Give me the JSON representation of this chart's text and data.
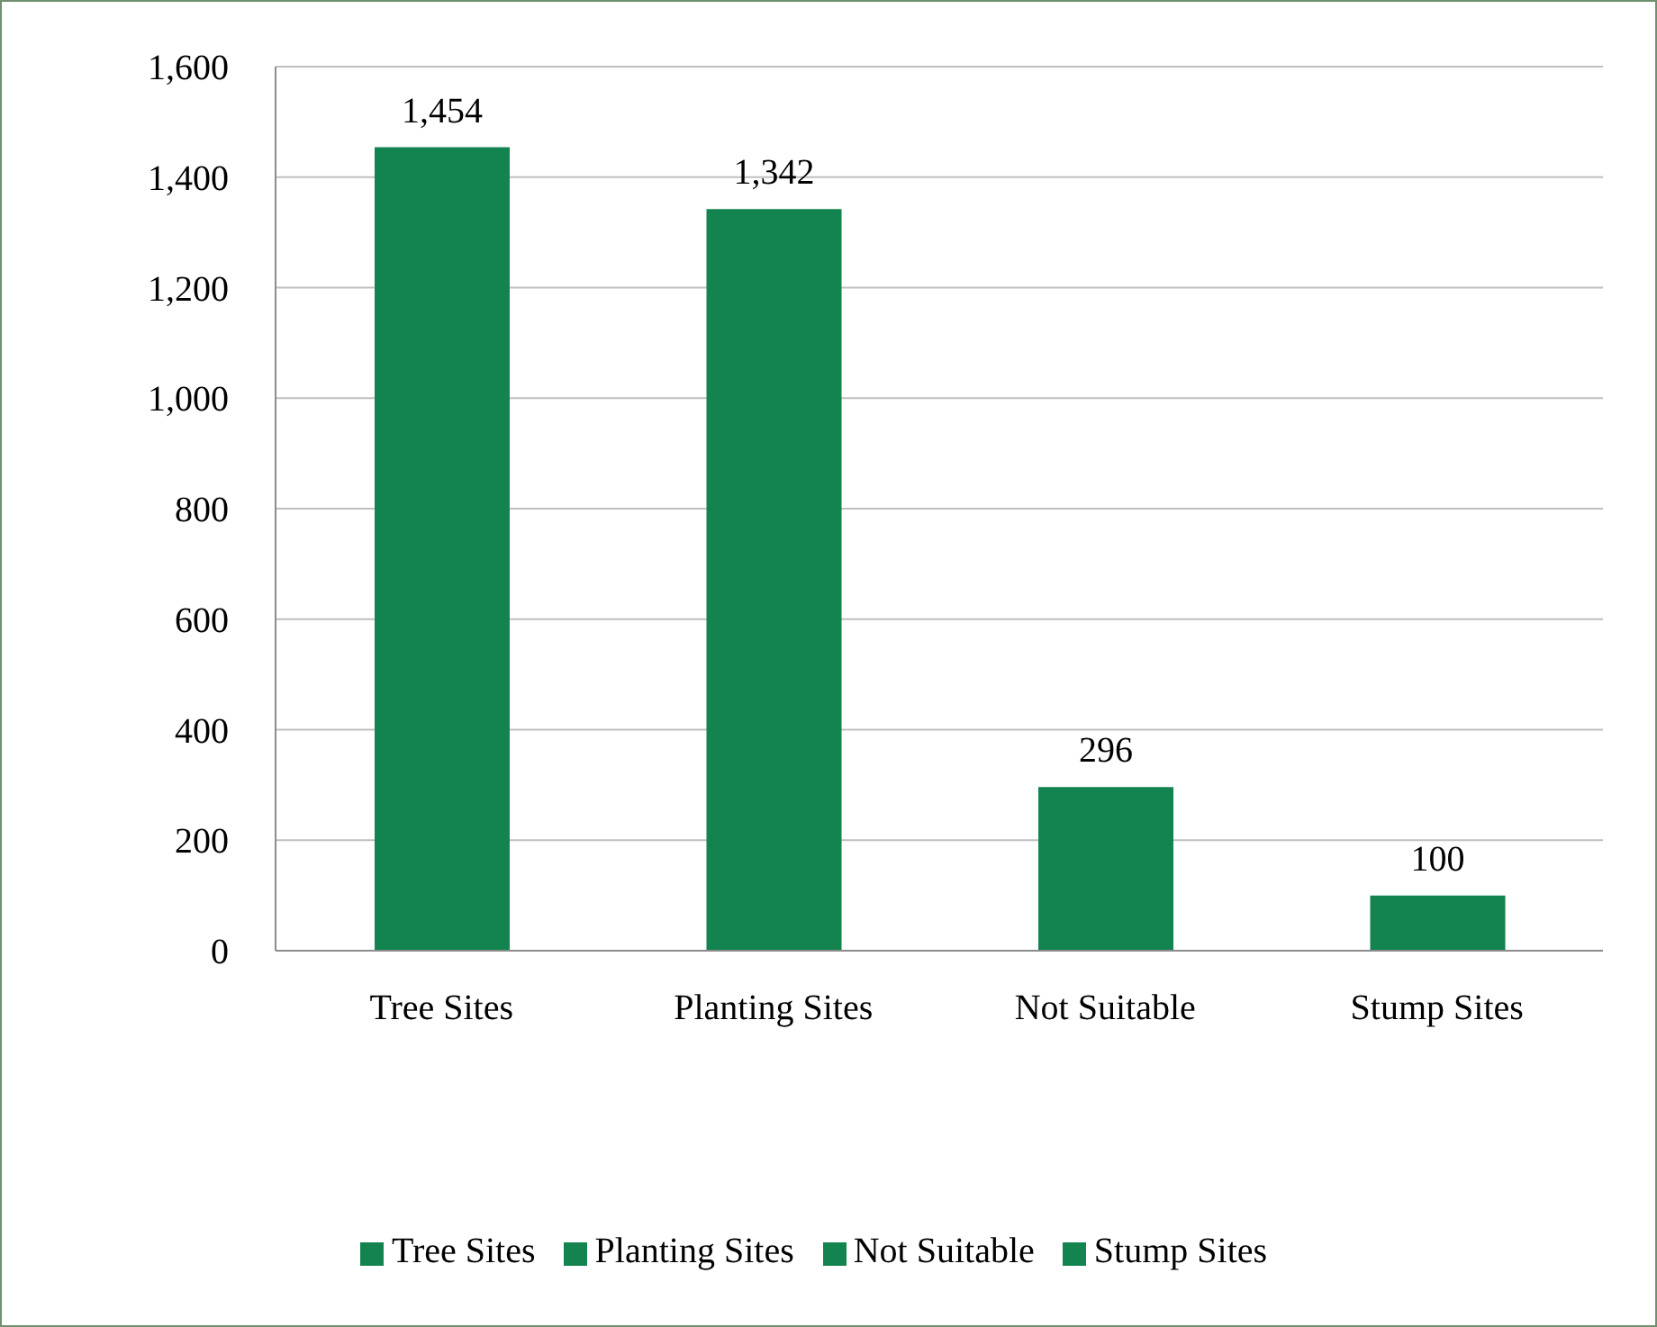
{
  "chart_data": {
    "type": "bar",
    "stacked": true,
    "categories": [
      "Tree Sites",
      "Planting Sites",
      "Not Suitable",
      "Stump Sites"
    ],
    "series": [
      {
        "name": "Tree Sites",
        "color": "#13834f",
        "values": [
          1454,
          null,
          null,
          null
        ],
        "value_labels": [
          "1,454",
          null,
          null,
          null
        ]
      },
      {
        "name": "Planting Sites",
        "color": "#13834f",
        "values": [
          null,
          1342,
          null,
          null
        ],
        "value_labels": [
          null,
          "1,342",
          null,
          null
        ]
      },
      {
        "name": "Not Suitable",
        "color": "#13834f",
        "values": [
          null,
          null,
          296,
          null
        ],
        "value_labels": [
          null,
          null,
          "296",
          null
        ]
      },
      {
        "name": "Stump Sites",
        "color": "#13834f",
        "values": [
          null,
          null,
          null,
          100
        ],
        "value_labels": [
          null,
          null,
          null,
          "100"
        ]
      }
    ],
    "ylim": [
      0,
      1600
    ],
    "yticks": [
      0,
      200,
      400,
      600,
      800,
      {
        "value": 1000,
        "label": "1,000"
      },
      {
        "value": 1200,
        "label": "1,200"
      },
      {
        "value": 1400,
        "label": "1,400"
      },
      {
        "value": 1600,
        "label": "1,600"
      }
    ],
    "grid": "y",
    "legend": "bottom"
  }
}
